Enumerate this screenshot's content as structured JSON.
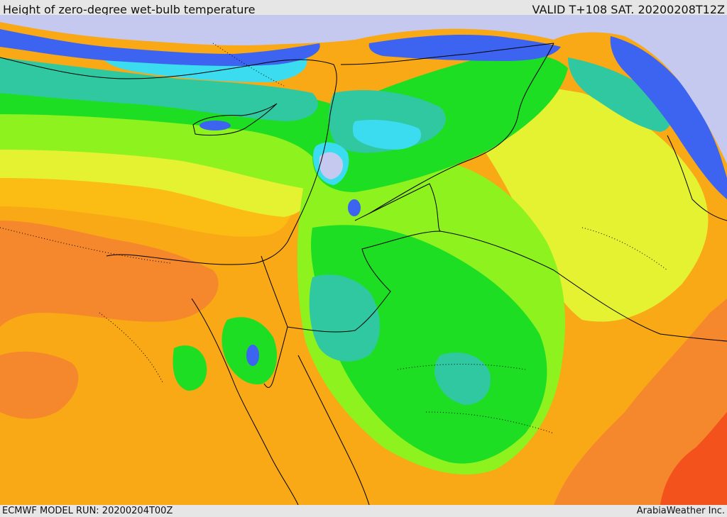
{
  "header": {
    "title": "Height of zero-degree wet-bulb temperature",
    "valid": "VALID T+108 SAT. 20200208T12Z"
  },
  "footer": {
    "model_run": "ECMWF MODEL RUN: 20200204T00Z",
    "credit": "ArabiaWeather Inc."
  },
  "map": {
    "region": "Eastern Mediterranean and Middle East",
    "palette": {
      "lavender": "#c6c9ef",
      "blue": "#3c64f0",
      "cyan": "#3cdcf0",
      "teal": "#30c8a0",
      "green": "#1ede24",
      "lime": "#8ef21e",
      "yellow": "#e4f232",
      "light_orange": "#fbbc14",
      "orange": "#f9a816",
      "dark_orange": "#f5872c",
      "red_orange": "#f4521c"
    },
    "border_color": "#000000"
  }
}
